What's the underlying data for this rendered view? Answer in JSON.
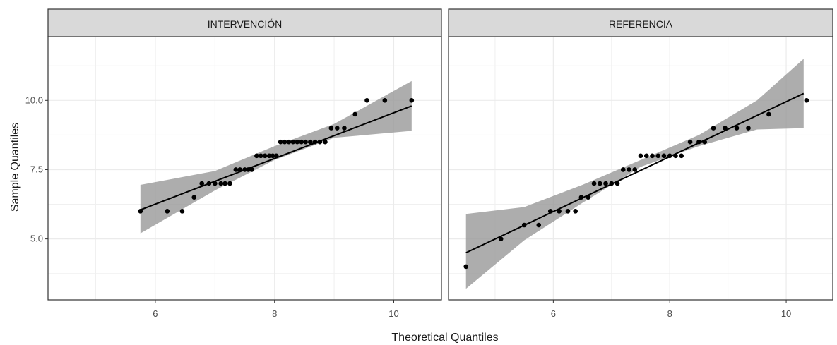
{
  "chart_data": {
    "type": "scatter",
    "xlabel": "Theoretical Quantiles",
    "ylabel": "Sample Quantiles",
    "grid": true,
    "x_ticks": [
      6,
      8,
      10
    ],
    "y_ticks": [
      5.0,
      7.5,
      10.0
    ],
    "y_tick_labels": [
      "5.0",
      "7.5",
      "10.0"
    ],
    "panels": [
      {
        "title": "INTERVENCIÓN",
        "xlim": [
          4.2,
          10.8
        ],
        "ylim": [
          2.8,
          12.3
        ],
        "points": [
          {
            "x": 5.75,
            "y": 6.0
          },
          {
            "x": 6.2,
            "y": 6.0
          },
          {
            "x": 6.45,
            "y": 6.0
          },
          {
            "x": 6.65,
            "y": 6.5
          },
          {
            "x": 6.78,
            "y": 7.0
          },
          {
            "x": 6.9,
            "y": 7.0
          },
          {
            "x": 7.0,
            "y": 7.0
          },
          {
            "x": 7.1,
            "y": 7.0
          },
          {
            "x": 7.17,
            "y": 7.0
          },
          {
            "x": 7.25,
            "y": 7.0
          },
          {
            "x": 7.35,
            "y": 7.5
          },
          {
            "x": 7.42,
            "y": 7.5
          },
          {
            "x": 7.5,
            "y": 7.5
          },
          {
            "x": 7.56,
            "y": 7.5
          },
          {
            "x": 7.62,
            "y": 7.5
          },
          {
            "x": 7.7,
            "y": 8.0
          },
          {
            "x": 7.77,
            "y": 8.0
          },
          {
            "x": 7.84,
            "y": 8.0
          },
          {
            "x": 7.91,
            "y": 8.0
          },
          {
            "x": 7.97,
            "y": 8.0
          },
          {
            "x": 8.03,
            "y": 8.0
          },
          {
            "x": 8.1,
            "y": 8.5
          },
          {
            "x": 8.17,
            "y": 8.5
          },
          {
            "x": 8.24,
            "y": 8.5
          },
          {
            "x": 8.31,
            "y": 8.5
          },
          {
            "x": 8.38,
            "y": 8.5
          },
          {
            "x": 8.45,
            "y": 8.5
          },
          {
            "x": 8.52,
            "y": 8.5
          },
          {
            "x": 8.6,
            "y": 8.5
          },
          {
            "x": 8.68,
            "y": 8.5
          },
          {
            "x": 8.76,
            "y": 8.5
          },
          {
            "x": 8.85,
            "y": 8.5
          },
          {
            "x": 8.95,
            "y": 9.0
          },
          {
            "x": 9.05,
            "y": 9.0
          },
          {
            "x": 9.17,
            "y": 9.0
          },
          {
            "x": 9.35,
            "y": 9.5
          },
          {
            "x": 9.55,
            "y": 10.0
          },
          {
            "x": 9.85,
            "y": 10.0
          },
          {
            "x": 10.3,
            "y": 10.0
          }
        ],
        "line": {
          "x": [
            5.75,
            10.3
          ],
          "y": [
            6.05,
            9.8
          ]
        },
        "band": {
          "x": [
            5.75,
            7.0,
            8.0,
            9.0,
            10.3
          ],
          "lower": [
            5.2,
            6.75,
            7.85,
            8.65,
            8.9
          ],
          "upper": [
            6.95,
            7.45,
            8.35,
            9.15,
            10.7
          ]
        }
      },
      {
        "title": "REFERENCIA",
        "xlim": [
          4.2,
          10.8
        ],
        "ylim": [
          2.8,
          12.3
        ],
        "points": [
          {
            "x": 4.5,
            "y": 4.0
          },
          {
            "x": 5.1,
            "y": 5.0
          },
          {
            "x": 5.5,
            "y": 5.5
          },
          {
            "x": 5.75,
            "y": 5.5
          },
          {
            "x": 5.95,
            "y": 6.0
          },
          {
            "x": 6.1,
            "y": 6.0
          },
          {
            "x": 6.25,
            "y": 6.0
          },
          {
            "x": 6.38,
            "y": 6.0
          },
          {
            "x": 6.48,
            "y": 6.5
          },
          {
            "x": 6.6,
            "y": 6.5
          },
          {
            "x": 6.7,
            "y": 7.0
          },
          {
            "x": 6.8,
            "y": 7.0
          },
          {
            "x": 6.9,
            "y": 7.0
          },
          {
            "x": 7.0,
            "y": 7.0
          },
          {
            "x": 7.1,
            "y": 7.0
          },
          {
            "x": 7.2,
            "y": 7.5
          },
          {
            "x": 7.3,
            "y": 7.5
          },
          {
            "x": 7.4,
            "y": 7.5
          },
          {
            "x": 7.5,
            "y": 8.0
          },
          {
            "x": 7.6,
            "y": 8.0
          },
          {
            "x": 7.7,
            "y": 8.0
          },
          {
            "x": 7.8,
            "y": 8.0
          },
          {
            "x": 7.9,
            "y": 8.0
          },
          {
            "x": 8.0,
            "y": 8.0
          },
          {
            "x": 8.1,
            "y": 8.0
          },
          {
            "x": 8.2,
            "y": 8.0
          },
          {
            "x": 8.35,
            "y": 8.5
          },
          {
            "x": 8.5,
            "y": 8.5
          },
          {
            "x": 8.6,
            "y": 8.5
          },
          {
            "x": 8.75,
            "y": 9.0
          },
          {
            "x": 8.95,
            "y": 9.0
          },
          {
            "x": 9.15,
            "y": 9.0
          },
          {
            "x": 9.35,
            "y": 9.0
          },
          {
            "x": 9.7,
            "y": 9.5
          },
          {
            "x": 10.35,
            "y": 10.0
          }
        ],
        "line": {
          "x": [
            4.5,
            10.3
          ],
          "y": [
            4.5,
            10.25
          ]
        },
        "band": {
          "x": [
            4.5,
            5.5,
            6.5,
            7.5,
            8.5,
            9.5,
            10.3
          ],
          "lower": [
            3.2,
            4.95,
            6.3,
            7.6,
            8.35,
            8.95,
            9.0
          ],
          "upper": [
            5.9,
            6.15,
            6.95,
            7.85,
            8.75,
            10.0,
            11.5
          ]
        }
      }
    ]
  }
}
